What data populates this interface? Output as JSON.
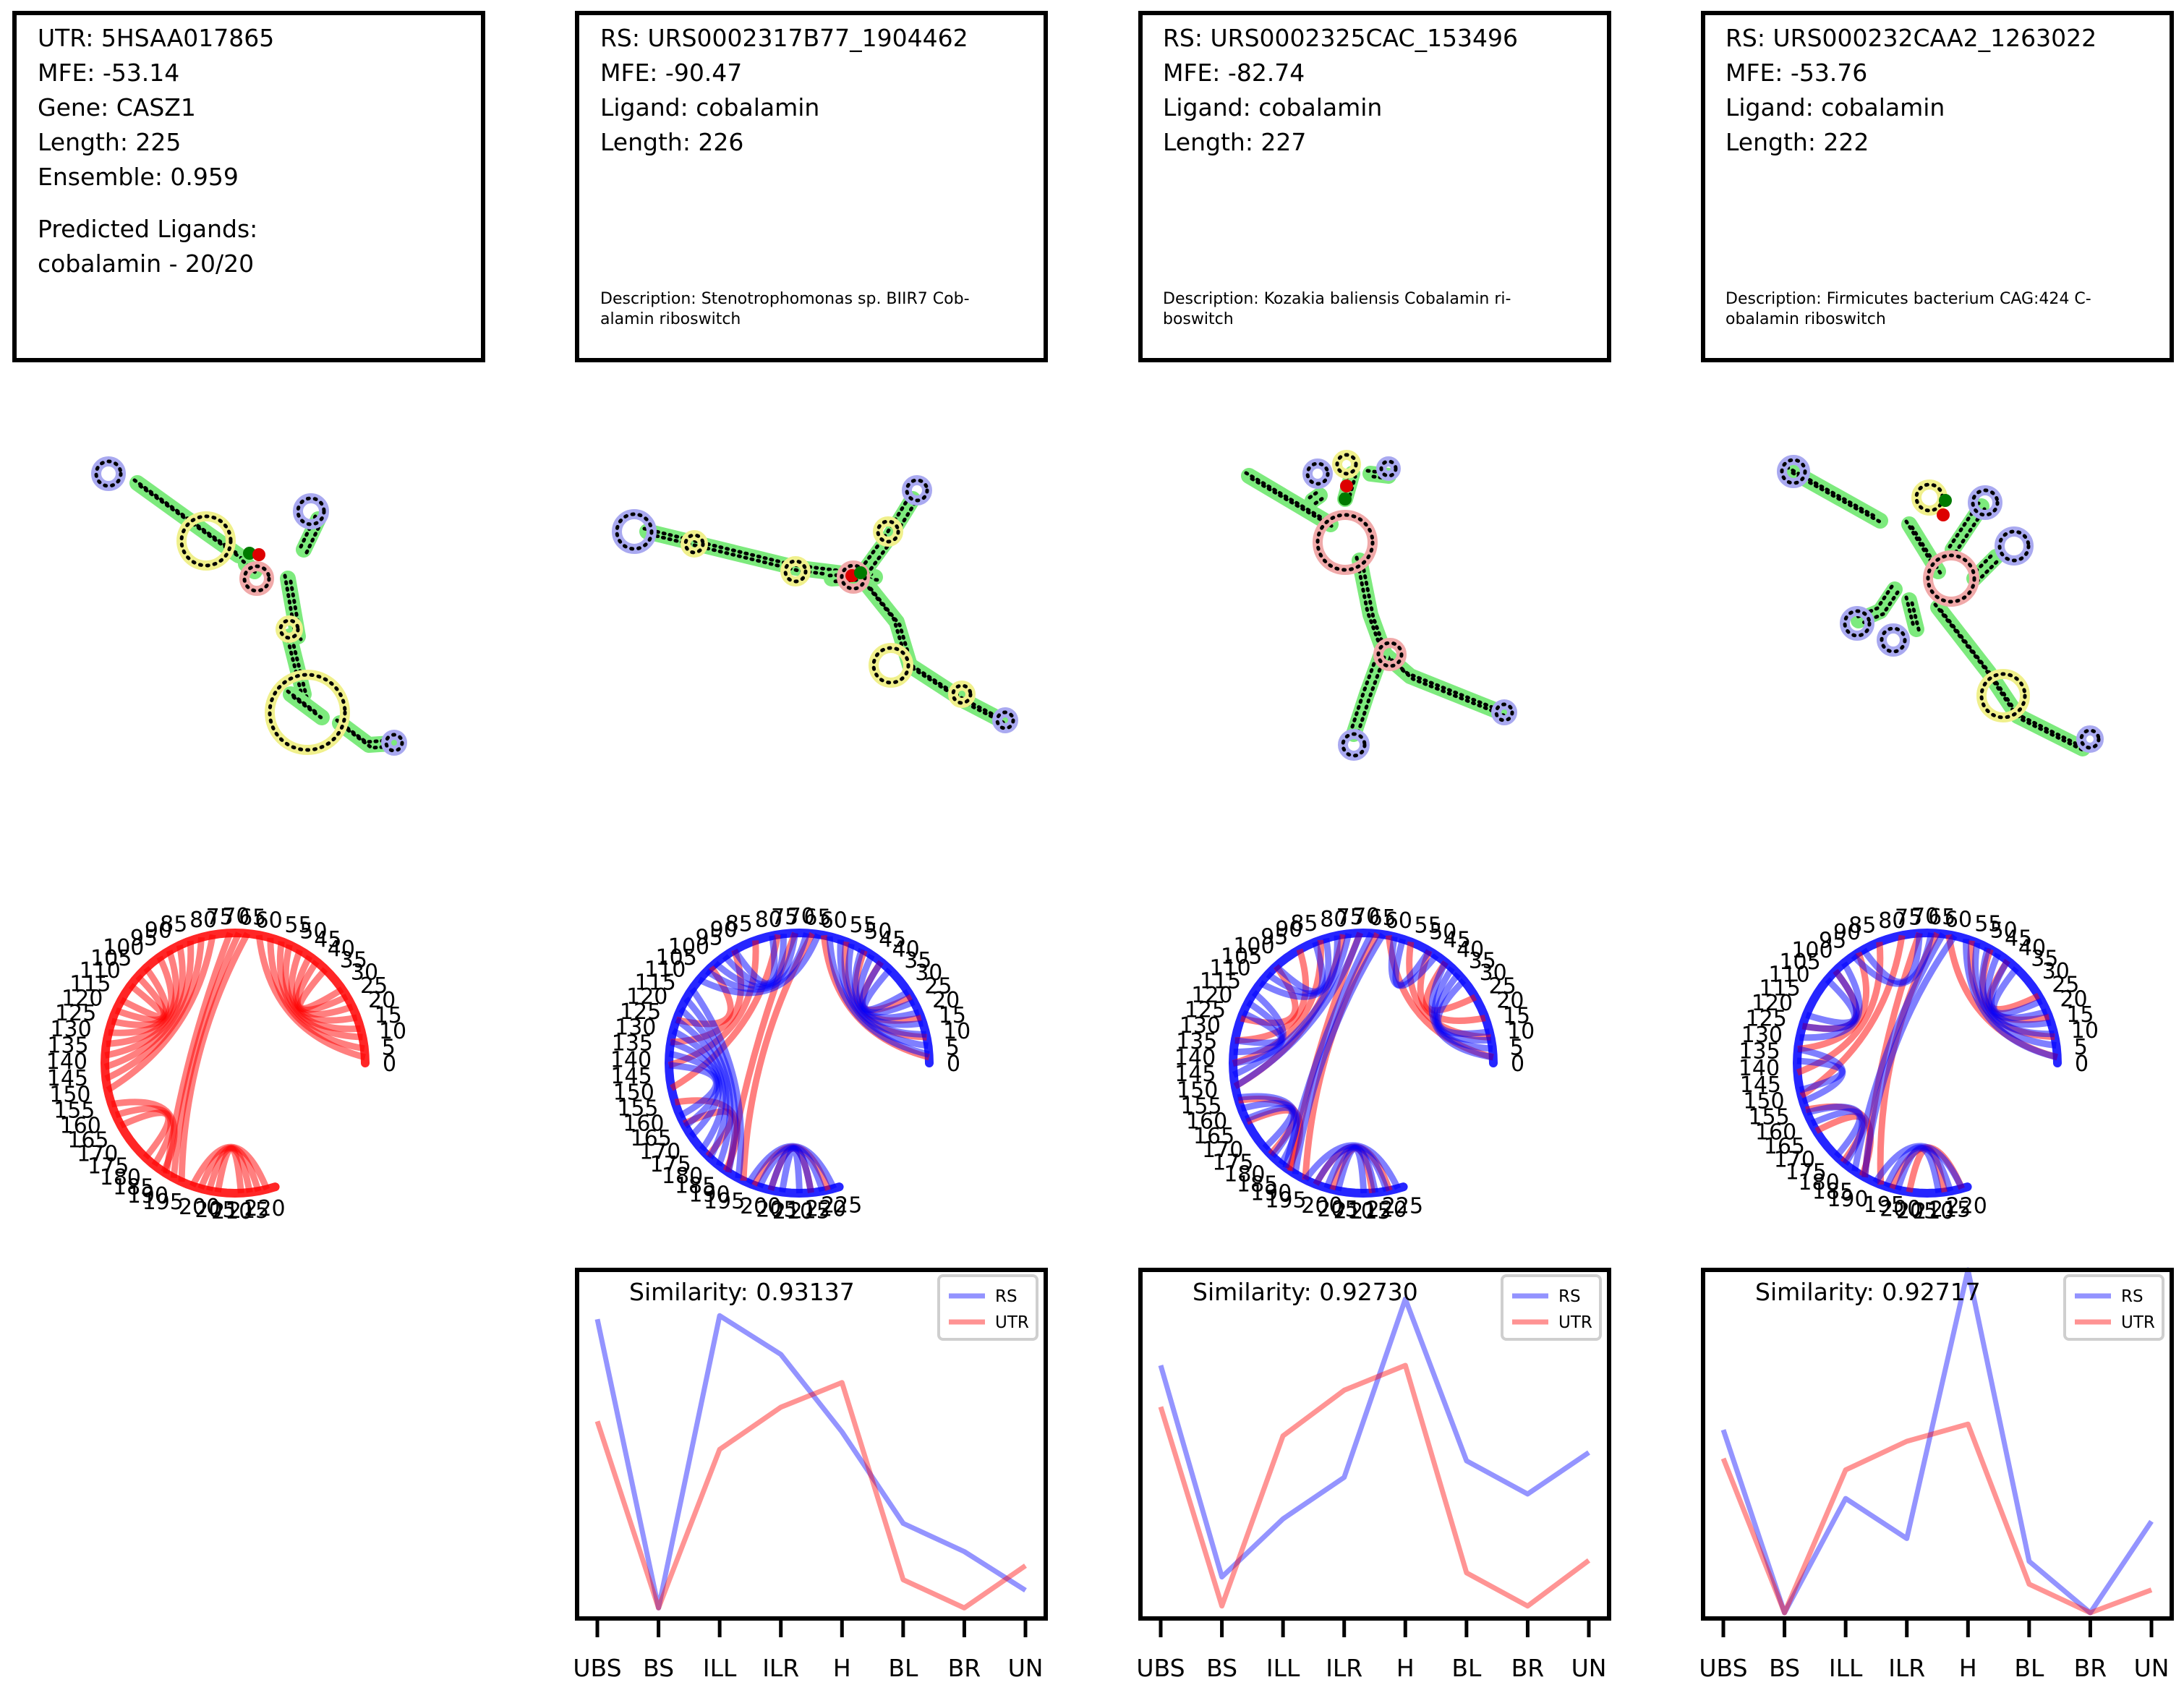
{
  "info_panels": [
    {
      "lines": [
        "UTR: 5HSAA017865",
        "MFE: -53.14",
        "Gene: CASZ1",
        "Length: 225",
        "Ensemble: 0.959"
      ],
      "predicted_ligands_heading": "Predicted Ligands:",
      "predicted_ligands_value": "cobalamin - 20/20"
    },
    {
      "lines": [
        "RS: URS0002317B77_1904462",
        "MFE: -90.47",
        "Ligand: cobalamin",
        "Length: 226"
      ],
      "description_lines": [
        "Description: Stenotrophomonas sp. BIIR7 Cob-",
        "alamin riboswitch"
      ]
    },
    {
      "lines": [
        "RS: URS0002325CAC_153496",
        "MFE: -82.74",
        "Ligand: cobalamin",
        "Length: 227"
      ],
      "description_lines": [
        "Description: Kozakia baliensis Cobalamin ri-",
        "boswitch"
      ]
    },
    {
      "lines": [
        "RS: URS000232CAA2_1263022",
        "MFE: -53.76",
        "Ligand: cobalamin",
        "Length: 222"
      ],
      "description_lines": [
        "Description: Firmicutes bacterium CAG:424 C-",
        "obalamin riboswitch"
      ]
    }
  ],
  "structure_colors": {
    "stem": "#7dea7d",
    "hairpin_loop": "#a9a9f0",
    "interior_loop": "#f0f08c",
    "multiloop": "#f0a9a9",
    "ligand_site_red": "#dd0000",
    "ligand_site_green": "#007a00",
    "nucleotide": "#000000"
  },
  "arc_colors": {
    "utr": "#ff0000",
    "rs": "#0000ff"
  },
  "chart_data": [
    {
      "type": "chord",
      "panel": "UTR arc diagram",
      "length": 225,
      "tick_labels": [
        "0",
        "5",
        "10",
        "15",
        "20",
        "25",
        "30",
        "35",
        "40",
        "45",
        "50",
        "55",
        "60",
        "65",
        "70",
        "75",
        "80",
        "85",
        "90",
        "95",
        "100",
        "105",
        "110",
        "115",
        "120",
        "125",
        "130",
        "135",
        "140",
        "145",
        "150",
        "155",
        "160",
        "165",
        "170",
        "175",
        "180",
        "185",
        "190",
        "195",
        "200",
        "205",
        "210",
        "215",
        "220"
      ],
      "series": [
        {
          "name": "UTR",
          "color": "#ff0000",
          "arcs": [
            [
              2,
              62
            ],
            [
              5,
              58
            ],
            [
              9,
              54
            ],
            [
              12,
              51
            ],
            [
              16,
              47
            ],
            [
              20,
              43
            ],
            [
              24,
              40
            ],
            [
              27,
              36
            ],
            [
              66,
              192
            ],
            [
              69,
              189
            ],
            [
              72,
              186
            ],
            [
              78,
              150
            ],
            [
              82,
              146
            ],
            [
              86,
              142
            ],
            [
              90,
              138
            ],
            [
              94,
              134
            ],
            [
              98,
              130
            ],
            [
              104,
              126
            ],
            [
              108,
              122
            ],
            [
              112,
              118
            ],
            [
              155,
              185
            ],
            [
              159,
              181
            ],
            [
              163,
              177
            ],
            [
              196,
              222
            ],
            [
              199,
              219
            ],
            [
              202,
              216
            ],
            [
              205,
              213
            ]
          ]
        }
      ]
    },
    {
      "type": "chord",
      "panel": "RS URS0002317B77_1904462 arc diagram",
      "length": 226,
      "tick_labels": [
        "0",
        "5",
        "10",
        "15",
        "20",
        "25",
        "30",
        "35",
        "40",
        "45",
        "50",
        "55",
        "60",
        "65",
        "70",
        "75",
        "80",
        "85",
        "90",
        "95",
        "100",
        "105",
        "110",
        "115",
        "120",
        "125",
        "130",
        "135",
        "140",
        "145",
        "150",
        "155",
        "160",
        "165",
        "170",
        "175",
        "180",
        "185",
        "190",
        "195",
        "200",
        "205",
        "210",
        "215",
        "220",
        "225"
      ],
      "series": [
        {
          "name": "RS",
          "color": "#0000ff",
          "arcs": [
            [
              3,
              60
            ],
            [
              6,
              56
            ],
            [
              10,
              52
            ],
            [
              14,
              48
            ],
            [
              18,
              44
            ],
            [
              22,
              40
            ],
            [
              26,
              36
            ],
            [
              64,
              110
            ],
            [
              68,
              106
            ],
            [
              72,
              102
            ],
            [
              76,
              98
            ],
            [
              80,
              94
            ],
            [
              114,
              190
            ],
            [
              118,
              186
            ],
            [
              122,
              182
            ],
            [
              126,
              178
            ],
            [
              130,
              174
            ],
            [
              134,
              168
            ],
            [
              138,
              164
            ],
            [
              142,
              160
            ],
            [
              194,
              224
            ],
            [
              198,
              220
            ],
            [
              202,
              216
            ],
            [
              206,
              212
            ]
          ]
        },
        {
          "name": "UTR",
          "color": "#ff0000",
          "arcs": [
            [
              2,
              62
            ],
            [
              9,
              54
            ],
            [
              16,
              47
            ],
            [
              24,
              40
            ],
            [
              66,
              192
            ],
            [
              72,
              186
            ],
            [
              78,
              150
            ],
            [
              86,
              142
            ],
            [
              94,
              134
            ],
            [
              104,
              126
            ],
            [
              155,
              185
            ],
            [
              163,
              177
            ],
            [
              196,
              222
            ],
            [
              202,
              216
            ]
          ]
        }
      ]
    },
    {
      "type": "chord",
      "panel": "RS URS0002325CAC_153496 arc diagram",
      "length": 227,
      "tick_labels": [
        "0",
        "5",
        "10",
        "15",
        "20",
        "25",
        "30",
        "35",
        "40",
        "45",
        "50",
        "55",
        "60",
        "65",
        "70",
        "75",
        "80",
        "85",
        "90",
        "95",
        "100",
        "105",
        "110",
        "115",
        "120",
        "125",
        "130",
        "135",
        "140",
        "145",
        "150",
        "155",
        "160",
        "165",
        "170",
        "175",
        "180",
        "185",
        "190",
        "195",
        "200",
        "205",
        "210",
        "215",
        "220",
        "225"
      ],
      "series": [
        {
          "name": "RS",
          "color": "#0000ff",
          "arcs": [
            [
              2,
              40
            ],
            [
              5,
              37
            ],
            [
              8,
              34
            ],
            [
              11,
              31
            ],
            [
              44,
              60
            ],
            [
              47,
              57
            ],
            [
              64,
              188
            ],
            [
              68,
              184
            ],
            [
              72,
              150
            ],
            [
              76,
              146
            ],
            [
              80,
              112
            ],
            [
              84,
              108
            ],
            [
              88,
              104
            ],
            [
              116,
              142
            ],
            [
              120,
              138
            ],
            [
              124,
              134
            ],
            [
              154,
              182
            ],
            [
              158,
              178
            ],
            [
              162,
              174
            ],
            [
              192,
              225
            ],
            [
              196,
              221
            ],
            [
              200,
              217
            ],
            [
              204,
              213
            ]
          ]
        },
        {
          "name": "UTR",
          "color": "#ff0000",
          "arcs": [
            [
              2,
              62
            ],
            [
              9,
              54
            ],
            [
              16,
              47
            ],
            [
              24,
              40
            ],
            [
              66,
              192
            ],
            [
              72,
              186
            ],
            [
              78,
              150
            ],
            [
              86,
              142
            ],
            [
              94,
              134
            ],
            [
              104,
              126
            ],
            [
              155,
              185
            ],
            [
              163,
              177
            ],
            [
              196,
              222
            ],
            [
              202,
              216
            ]
          ]
        }
      ]
    },
    {
      "type": "chord",
      "panel": "RS URS000232CAA2_1263022 arc diagram",
      "length": 222,
      "tick_labels": [
        "0",
        "5",
        "10",
        "15",
        "20",
        "25",
        "30",
        "35",
        "40",
        "45",
        "50",
        "55",
        "60",
        "65",
        "70",
        "75",
        "80",
        "85",
        "90",
        "95",
        "100",
        "105",
        "110",
        "115",
        "120",
        "125",
        "130",
        "135",
        "140",
        "145",
        "150",
        "155",
        "160",
        "165",
        "170",
        "175",
        "180",
        "185",
        "190",
        "195",
        "200",
        "205",
        "210",
        "215",
        "220"
      ],
      "series": [
        {
          "name": "RS",
          "color": "#0000ff",
          "arcs": [
            [
              2,
              56
            ],
            [
              6,
              52
            ],
            [
              10,
              48
            ],
            [
              14,
              44
            ],
            [
              18,
              40
            ],
            [
              22,
              36
            ],
            [
              60,
              186
            ],
            [
              64,
              182
            ],
            [
              68,
              96
            ],
            [
              72,
              92
            ],
            [
              100,
              130
            ],
            [
              104,
              126
            ],
            [
              108,
              122
            ],
            [
              134,
              152
            ],
            [
              138,
              148
            ],
            [
              156,
              178
            ],
            [
              160,
              174
            ],
            [
              190,
              220
            ],
            [
              194,
              216
            ],
            [
              198,
              212
            ]
          ]
        },
        {
          "name": "UTR",
          "color": "#ff0000",
          "arcs": [
            [
              2,
              62
            ],
            [
              9,
              54
            ],
            [
              16,
              47
            ],
            [
              24,
              40
            ],
            [
              66,
              192
            ],
            [
              72,
              186
            ],
            [
              78,
              150
            ],
            [
              86,
              142
            ],
            [
              94,
              134
            ],
            [
              104,
              126
            ],
            [
              155,
              185
            ],
            [
              163,
              177
            ],
            [
              196,
              220
            ],
            [
              202,
              214
            ]
          ]
        }
      ]
    },
    {
      "type": "line",
      "panel": "Profile URS0002317B77_1904462",
      "annotation": "Similarity: 0.93137",
      "categories": [
        "UBS",
        "BS",
        "ILL",
        "ILR",
        "H",
        "BL",
        "BR",
        "UN"
      ],
      "series": [
        {
          "name": "RS",
          "color": "#0000ff",
          "values": [
            0.82,
            0.0,
            0.83,
            0.72,
            0.5,
            0.24,
            0.16,
            0.05
          ]
        },
        {
          "name": "UTR",
          "color": "#ff0000",
          "values": [
            0.53,
            0.0,
            0.45,
            0.57,
            0.64,
            0.08,
            0.0,
            0.12
          ]
        }
      ],
      "ylim": [
        -0.03,
        0.96
      ],
      "legend": "top-right"
    },
    {
      "type": "line",
      "panel": "Profile URS0002325CAC_153496",
      "annotation": "Similarity: 0.92730",
      "categories": [
        "UBS",
        "BS",
        "ILL",
        "ILR",
        "H",
        "BL",
        "BR",
        "UN"
      ],
      "series": [
        {
          "name": "RS",
          "color": "#0000ff",
          "values": [
            0.58,
            0.07,
            0.21,
            0.31,
            0.74,
            0.35,
            0.27,
            0.37
          ]
        },
        {
          "name": "UTR",
          "color": "#ff0000",
          "values": [
            0.48,
            0.0,
            0.41,
            0.52,
            0.58,
            0.08,
            0.0,
            0.11
          ]
        }
      ],
      "ylim": [
        -0.03,
        0.81
      ],
      "legend": "top-right"
    },
    {
      "type": "line",
      "panel": "Profile URS000232CAA2_1263022",
      "annotation": "Similarity: 0.92717",
      "categories": [
        "UBS",
        "BS",
        "ILL",
        "ILR",
        "H",
        "BL",
        "BR",
        "UN"
      ],
      "series": [
        {
          "name": "RS",
          "color": "#0000ff",
          "values": [
            0.32,
            0.0,
            0.2,
            0.13,
            0.6,
            0.09,
            0.0,
            0.16
          ]
        },
        {
          "name": "UTR",
          "color": "#ff0000",
          "values": [
            0.27,
            0.0,
            0.25,
            0.3,
            0.33,
            0.05,
            0.0,
            0.04
          ]
        }
      ],
      "ylim": [
        -0.01,
        0.6
      ],
      "legend": "top-right"
    }
  ]
}
